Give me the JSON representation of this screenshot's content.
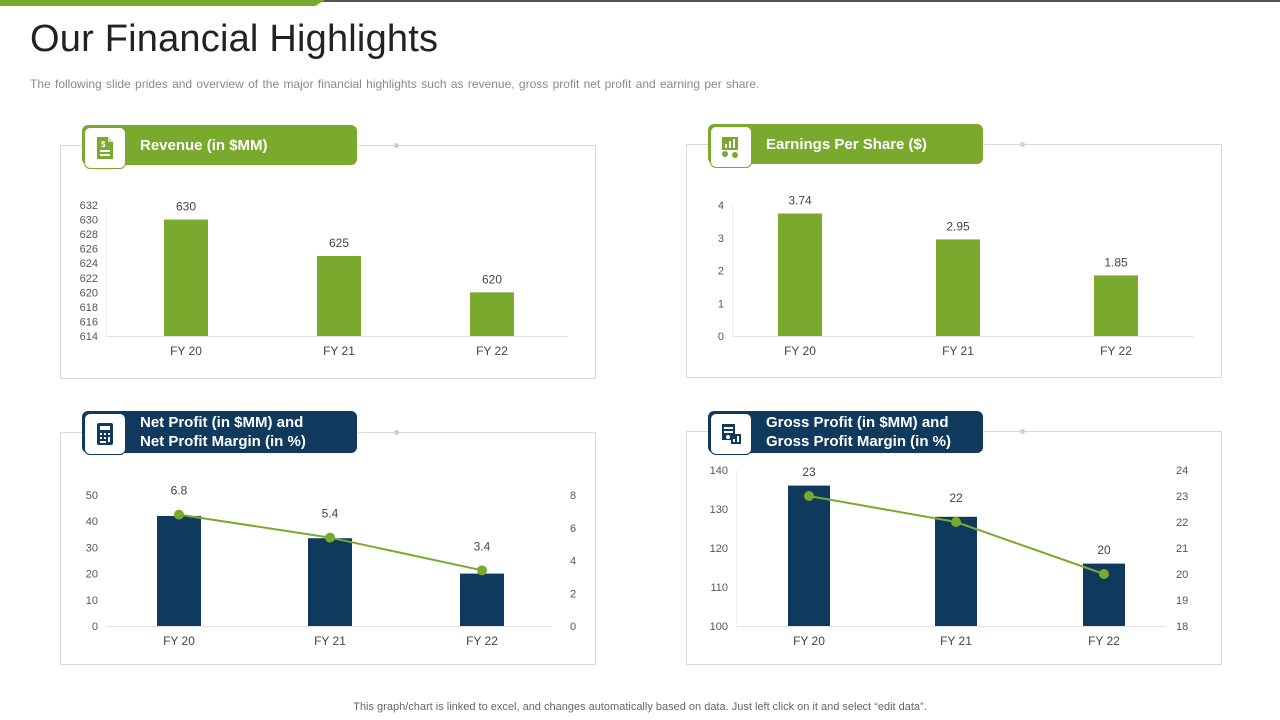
{
  "page": {
    "title": "Our Financial Highlights",
    "subtitle": "The following slide prides and overview of the major financial highlights such as revenue, gross profit net profit and earning per share.",
    "footer": "This graph/chart is linked to excel, and changes automatically based on data. Just left click on it and select “edit data”."
  },
  "colors": {
    "green": "#7aaa2d",
    "navy": "#0f3a5e"
  },
  "headers": {
    "revenue": {
      "label": "Revenue (in $MM)",
      "icon": "document-dollar-icon"
    },
    "eps": {
      "label": "Earnings Per Share ($)",
      "icon": "growth-chart-icon"
    },
    "net_profit": {
      "line1": "Net Profit (in $MM) and",
      "line2": "Net Profit Margin (in %)",
      "icon": "calculator-icon"
    },
    "gross_profit": {
      "line1": "Gross Profit (in $MM) and",
      "line2": "Gross Profit Margin (in %)",
      "icon": "money-chart-icon"
    }
  },
  "chart_data": [
    {
      "id": "revenue",
      "type": "bar",
      "title": "Revenue (in $MM)",
      "categories": [
        "FY 20",
        "FY 21",
        "FY 22"
      ],
      "values": [
        630,
        625,
        620
      ],
      "data_labels": [
        "630",
        "625",
        "620"
      ],
      "ylim": [
        614,
        632
      ],
      "yticks": [
        614,
        616,
        618,
        620,
        622,
        624,
        626,
        628,
        630,
        632
      ],
      "color": "#7aaa2d"
    },
    {
      "id": "eps",
      "type": "bar",
      "title": "Earnings Per Share ($)",
      "categories": [
        "FY 20",
        "FY 21",
        "FY 22"
      ],
      "values": [
        3.74,
        2.95,
        1.85
      ],
      "data_labels": [
        "3.74",
        "2.95",
        "1.85"
      ],
      "ylim": [
        0,
        4
      ],
      "yticks": [
        0,
        1,
        2,
        3,
        4
      ],
      "color": "#7aaa2d"
    },
    {
      "id": "net_profit",
      "type": "bar",
      "title": "Net Profit (in $MM) and Net Profit Margin (in %)",
      "categories": [
        "FY 20",
        "FY 21",
        "FY 22"
      ],
      "values": [
        42,
        33.5,
        20
      ],
      "ylim": [
        0,
        50
      ],
      "yticks": [
        0,
        10,
        20,
        30,
        40,
        50
      ],
      "color": "#0f3a5e",
      "line": {
        "name": "Net Profit Margin (in %)",
        "values": [
          6.8,
          5.4,
          3.4
        ],
        "labels": [
          "6.8",
          "5.4",
          "3.4"
        ],
        "ylim": [
          0,
          8
        ],
        "yticks": [
          0,
          2,
          4,
          6,
          8
        ],
        "color": "#7aaa2d"
      }
    },
    {
      "id": "gross_profit",
      "type": "bar",
      "title": "Gross Profit (in $MM) and Gross Profit Margin (in %)",
      "categories": [
        "FY 20",
        "FY 21",
        "FY 22"
      ],
      "values": [
        136,
        128,
        116
      ],
      "ylim": [
        100,
        140
      ],
      "yticks": [
        100,
        110,
        120,
        130,
        140
      ],
      "color": "#0f3a5e",
      "line": {
        "name": "Gross Profit Margin (in %)",
        "values": [
          23,
          22,
          20
        ],
        "labels": [
          "23",
          "22",
          "20"
        ],
        "ylim": [
          18,
          24
        ],
        "yticks": [
          18,
          19,
          20,
          21,
          22,
          23,
          24
        ],
        "color": "#7aaa2d"
      }
    }
  ]
}
